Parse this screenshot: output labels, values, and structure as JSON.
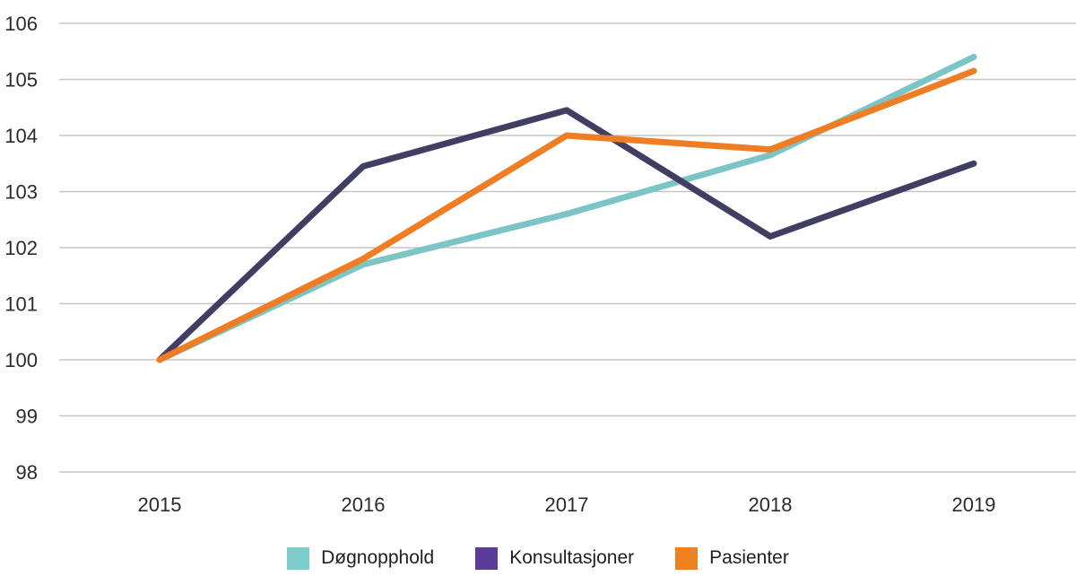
{
  "chart_data": {
    "type": "line",
    "title": "",
    "xlabel": "",
    "ylabel": "",
    "x_categories": [
      "2015",
      "2016",
      "2017",
      "2018",
      "2019"
    ],
    "y_ticks": [
      98,
      99,
      100,
      101,
      102,
      103,
      104,
      105,
      106
    ],
    "ylim": [
      98,
      106
    ],
    "grid": "horizontal-only",
    "legend_position": "bottom-center",
    "series": [
      {
        "name": "Døgnopphold",
        "color": "#7cc5c6",
        "legend_color": "#7ecbcb",
        "values": [
          100,
          101.7,
          102.6,
          103.65,
          105.4
        ]
      },
      {
        "name": "Konsultasjoner",
        "color": "#413e63",
        "legend_color": "#5b3c99",
        "values": [
          100,
          103.45,
          104.45,
          102.2,
          103.5
        ]
      },
      {
        "name": "Pasienter",
        "color": "#ee7d23",
        "legend_color": "#ee8122",
        "values": [
          100,
          101.8,
          104.0,
          103.75,
          105.15
        ]
      }
    ]
  },
  "colors": {
    "background": "#ffffff",
    "gridline": "#c6c6c6",
    "axis_text": "#2b2b2b",
    "legend_text": "#1f1f1f"
  }
}
